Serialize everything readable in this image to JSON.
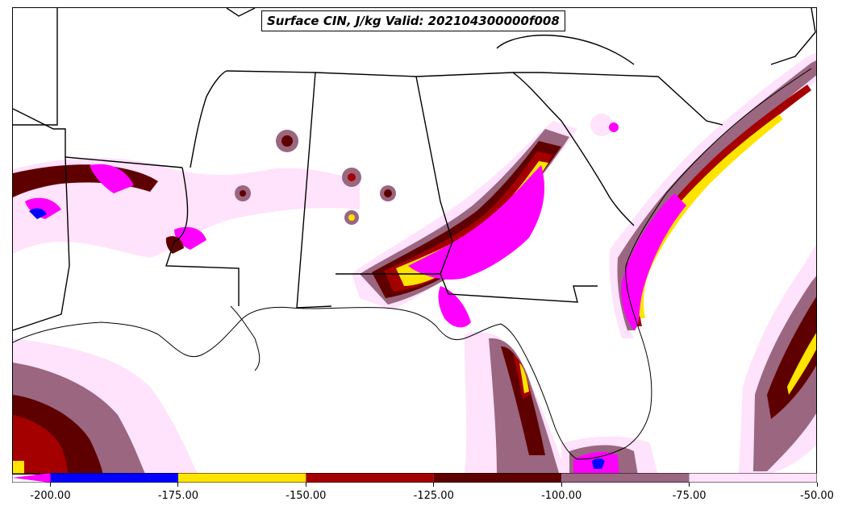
{
  "title": "Surface CIN, J/kg Valid: 202104300000f008",
  "colorbar": {
    "ticks": [
      "-200.00",
      "-175.00",
      "-150.00",
      "-125.00",
      "-100.00",
      "-75.00",
      "-50.00"
    ],
    "tick_values": [
      -200,
      -175,
      -150,
      -125,
      -100,
      -75,
      -50
    ],
    "range": [
      -207.5,
      -50
    ],
    "extend": "min",
    "bins": [
      {
        "from": -207.5,
        "to": -200,
        "color": "#ff00ff"
      },
      {
        "from": -200,
        "to": -175,
        "color": "#0000ff"
      },
      {
        "from": -175,
        "to": -150,
        "color": "#ffe400"
      },
      {
        "from": -150,
        "to": -125,
        "color": "#a50000"
      },
      {
        "from": -125,
        "to": -100,
        "color": "#5f0000"
      },
      {
        "from": -100,
        "to": -75,
        "color": "#9a6680"
      },
      {
        "from": -75,
        "to": -50,
        "color": "#ffe2fb"
      }
    ]
  }
}
